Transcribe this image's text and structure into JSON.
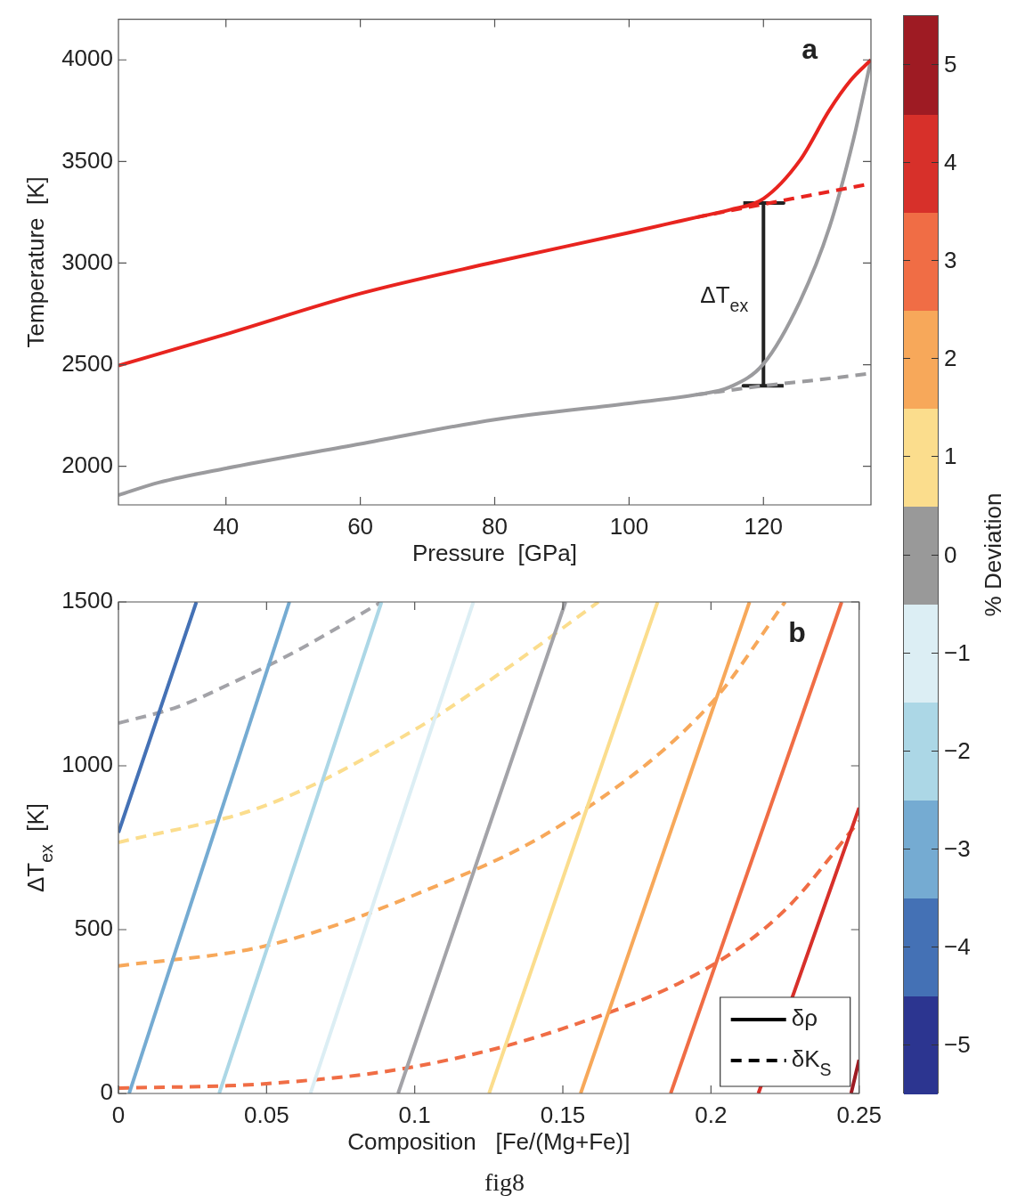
{
  "chart_data": [
    {
      "type": "line",
      "title": "a",
      "xlabel": "Pressure  [GPa]",
      "ylabel": "Temperature  [K]",
      "xlim": [
        24,
        136
      ],
      "xticks": [
        40,
        60,
        80,
        100,
        120
      ],
      "ylim": [
        1810,
        4200
      ],
      "yticks": [
        2000,
        2500,
        3000,
        3500,
        4000
      ],
      "grid": false,
      "legend": false,
      "marker": "none",
      "annotations": [
        "ΔT$_{ex}$"
      ],
      "series": [
        {
          "color": "#e8241f",
          "line_style": "dashed",
          "x": [
            110,
            120,
            128,
            136
          ],
          "values": [
            3225,
            3290,
            3340,
            3391
          ]
        },
        {
          "color": "#9b9b9e",
          "line_style": "dashed",
          "x": [
            110,
            120,
            128,
            136
          ],
          "values": [
            2352,
            2396,
            2425,
            2457
          ]
        },
        {
          "color": "#e8241f",
          "line_style": "solid",
          "x": [
            24,
            40,
            60,
            80,
            100,
            110,
            115,
            120,
            125.4,
            129.8,
            133,
            136
          ],
          "values": [
            2495,
            2650,
            2850,
            3005,
            3150,
            3225,
            3262,
            3317,
            3504,
            3752,
            3900,
            4000
          ]
        },
        {
          "color": "#9b9b9e",
          "line_style": "solid",
          "x": [
            24,
            30,
            40,
            60,
            80,
            100,
            110,
            115,
            120,
            125.4,
            129.8,
            133.4,
            136
          ],
          "values": [
            1858,
            1920,
            1990,
            2110,
            2230,
            2310,
            2352,
            2390,
            2504,
            2809,
            3174,
            3609,
            4000
          ]
        },
        {
          "color": "#222222",
          "line_style": "solid",
          "x": [
            117,
            123,
            120,
            120,
            117,
            123
          ],
          "values": [
            3296,
            3296,
            3296,
            2396,
            2396,
            2396
          ]
        }
      ]
    },
    {
      "type": "line",
      "title": "b",
      "xlabel": "Composition   [Fe/(Mg+Fe)]",
      "ylabel": "ΔT$_{ex}$  [K]",
      "xlim": [
        0,
        0.25
      ],
      "xticks": [
        0,
        0.05,
        0.1,
        0.15,
        0.2,
        0.25
      ],
      "ylim": [
        0,
        1500
      ],
      "yticks": [
        0,
        500,
        1000,
        1500
      ],
      "grid": false,
      "legend": "bottom right",
      "marker": "none",
      "clabel": "% Deviation",
      "clim": [
        -5.5,
        5.5
      ],
      "cticks": [
        {
          "value": -5,
          "label": "−5"
        },
        {
          "value": -4,
          "label": "−4"
        },
        {
          "value": -3,
          "label": "−3"
        },
        {
          "value": -2,
          "label": "−2"
        },
        {
          "value": -1,
          "label": "−1"
        },
        0,
        1,
        2,
        3,
        4,
        5
      ],
      "colors": [
        "#2c3590",
        "#4471b5",
        "#75abd2",
        "#acd7e6",
        "#dceef4",
        "#999999",
        "#fbdd8d",
        "#f7a85a",
        "#f06d45",
        "#d7302a",
        "#9e1b23"
      ],
      "annotations": [
        "fig8"
      ],
      "series": [
        {
          "color": "#4471b5",
          "line_style": "solid",
          "x": [
            0,
            0.0263
          ],
          "values": [
            796,
            1500
          ]
        },
        {
          "color": "#75abd2",
          "line_style": "solid",
          "x": [
            0.0036,
            0.0577
          ],
          "values": [
            0,
            1500
          ]
        },
        {
          "color": "#acd7e6",
          "line_style": "solid",
          "x": [
            0.034,
            0.0888
          ],
          "values": [
            0,
            1500
          ]
        },
        {
          "color": "#dceef4",
          "line_style": "solid",
          "x": [
            0.0648,
            0.1198
          ],
          "values": [
            0,
            1500
          ]
        },
        {
          "color": "#a3a3a8",
          "line_style": "solid",
          "x": [
            0.0944,
            0.1509
          ],
          "values": [
            0,
            1500
          ]
        },
        {
          "color": "#fbdd8d",
          "line_style": "solid",
          "x": [
            0.1251,
            0.182
          ],
          "values": [
            0,
            1500
          ]
        },
        {
          "color": "#f7a85a",
          "line_style": "solid",
          "x": [
            0.156,
            0.213
          ],
          "values": [
            0,
            1500
          ]
        },
        {
          "color": "#f06d45",
          "line_style": "solid",
          "x": [
            0.1864,
            0.2441
          ],
          "values": [
            0,
            1500
          ]
        },
        {
          "color": "#d7302a",
          "line_style": "solid",
          "x": [
            0.216,
            0.25
          ],
          "values": [
            0,
            872
          ]
        },
        {
          "color": "#9e1b23",
          "line_style": "solid",
          "x": [
            0.2473,
            0.25
          ],
          "values": [
            0,
            103
          ]
        },
        {
          "color": "#a3a3a8",
          "line_style": "dashed",
          "x": [
            0,
            0.02,
            0.04,
            0.06,
            0.0888
          ],
          "values": [
            1130,
            1180,
            1260,
            1350,
            1500
          ]
        },
        {
          "color": "#fbdd8d",
          "line_style": "dashed",
          "x": [
            0,
            0.05,
            0.1,
            0.13,
            0.162
          ],
          "values": [
            766,
            880,
            1110,
            1290,
            1500
          ]
        },
        {
          "color": "#f7a85a",
          "line_style": "dashed",
          "x": [
            0,
            0.05,
            0.1,
            0.15,
            0.2,
            0.225
          ],
          "values": [
            389,
            451,
            606,
            823,
            1190,
            1500
          ]
        },
        {
          "color": "#f06d45",
          "line_style": "dashed",
          "x": [
            0,
            0.05,
            0.1,
            0.15,
            0.2,
            0.225,
            0.25
          ],
          "values": [
            16,
            30,
            82,
            198,
            389,
            560,
            831
          ]
        },
        {
          "name": "δρ",
          "color": "#000000",
          "line_style": "solid"
        },
        {
          "name": "δK$_{S}$",
          "color": "#000000",
          "line_style": "dashed"
        }
      ]
    }
  ]
}
